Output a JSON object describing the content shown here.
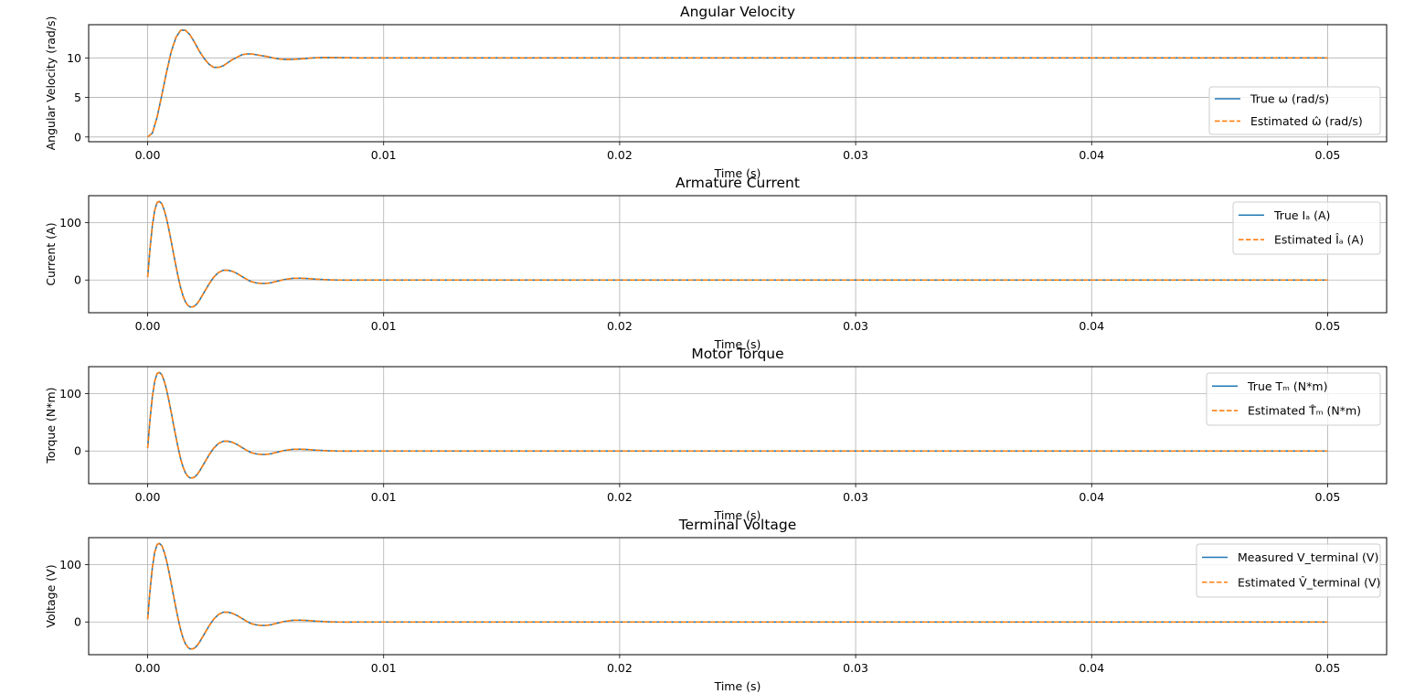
{
  "colors": {
    "true_series": "#1f77b4",
    "estimated_series": "#ff7f0e",
    "grid": "#b0b0b0"
  },
  "chart_data": [
    {
      "type": "line",
      "title": "Angular Velocity",
      "xlabel": "Time (s)",
      "ylabel": "Angular Velocity (rad/s)",
      "xlim": [
        -0.0025,
        0.0525
      ],
      "ylim": [
        -0.6,
        14.2
      ],
      "xticks": [
        0.0,
        0.01,
        0.02,
        0.03,
        0.04,
        0.05
      ],
      "xtick_labels": [
        "0.00",
        "0.01",
        "0.02",
        "0.03",
        "0.04",
        "0.05"
      ],
      "yticks": [
        0,
        5,
        10
      ],
      "ytick_labels": [
        "0",
        "5",
        "10"
      ],
      "grid": true,
      "legend_position": "lower-right",
      "x": [
        0.0,
        0.0002,
        0.0004,
        0.0006,
        0.0008,
        0.001,
        0.0012,
        0.0014,
        0.0016,
        0.0018,
        0.002,
        0.0022,
        0.0024,
        0.0026,
        0.0028,
        0.003,
        0.0032,
        0.0034,
        0.0036,
        0.0038,
        0.004,
        0.0042,
        0.0044,
        0.0046,
        0.0048,
        0.005,
        0.0053,
        0.0056,
        0.0059,
        0.0062,
        0.0066,
        0.007,
        0.0075,
        0.008,
        0.009,
        0.01,
        0.02,
        0.03,
        0.04,
        0.05
      ],
      "series": [
        {
          "name": "True ω (rad/s)",
          "style": "solid",
          "y": [
            0.0,
            0.5,
            2.5,
            5.3,
            8.2,
            10.8,
            12.6,
            13.5,
            13.5,
            12.9,
            11.9,
            10.8,
            9.9,
            9.2,
            8.8,
            8.8,
            9.0,
            9.4,
            9.8,
            10.1,
            10.4,
            10.5,
            10.5,
            10.4,
            10.3,
            10.2,
            10.0,
            9.85,
            9.8,
            9.82,
            9.9,
            10.0,
            10.05,
            10.03,
            10.0,
            10.0,
            10.0,
            10.0,
            10.0,
            10.0
          ]
        },
        {
          "name": "Estimated ω̂ (rad/s)",
          "style": "dashed",
          "y": [
            0.0,
            0.5,
            2.5,
            5.3,
            8.2,
            10.8,
            12.6,
            13.5,
            13.5,
            12.9,
            11.9,
            10.8,
            9.9,
            9.2,
            8.8,
            8.8,
            9.0,
            9.4,
            9.8,
            10.1,
            10.4,
            10.5,
            10.5,
            10.4,
            10.3,
            10.2,
            10.0,
            9.85,
            9.8,
            9.82,
            9.9,
            10.0,
            10.05,
            10.03,
            10.0,
            10.0,
            10.0,
            10.0,
            10.0,
            10.0
          ]
        }
      ]
    },
    {
      "type": "line",
      "title": "Armature Current",
      "xlabel": "Time (s)",
      "ylabel": "Current (A)",
      "xlim": [
        -0.0025,
        0.0525
      ],
      "ylim": [
        -57,
        147
      ],
      "xticks": [
        0.0,
        0.01,
        0.02,
        0.03,
        0.04,
        0.05
      ],
      "xtick_labels": [
        "0.00",
        "0.01",
        "0.02",
        "0.03",
        "0.04",
        "0.05"
      ],
      "yticks": [
        0,
        100
      ],
      "ytick_labels": [
        "0",
        "100"
      ],
      "grid": true,
      "legend_position": "upper-right",
      "x": [
        0.0,
        0.0001,
        0.0002,
        0.0003,
        0.0004,
        0.0005,
        0.0006,
        0.0007,
        0.0008,
        0.0009,
        0.001,
        0.0011,
        0.0012,
        0.0013,
        0.0014,
        0.0015,
        0.0016,
        0.0017,
        0.0018,
        0.0019,
        0.002,
        0.0021,
        0.0022,
        0.0023,
        0.0024,
        0.0026,
        0.0028,
        0.003,
        0.0032,
        0.0034,
        0.0036,
        0.0038,
        0.004,
        0.0042,
        0.0044,
        0.0046,
        0.0048,
        0.005,
        0.0052,
        0.0054,
        0.0056,
        0.0058,
        0.006,
        0.0062,
        0.0065,
        0.0068,
        0.0071,
        0.0074,
        0.0077,
        0.008,
        0.0085,
        0.009,
        0.01,
        0.02,
        0.03,
        0.04,
        0.05
      ],
      "series": [
        {
          "name": "True Iₐ (A)",
          "style": "solid",
          "y": [
            5,
            55,
            95,
            122,
            135,
            137,
            133,
            122,
            107,
            88,
            67,
            45,
            24,
            4,
            -14,
            -28,
            -38,
            -44,
            -47,
            -47,
            -45,
            -41,
            -35,
            -28,
            -21,
            -7,
            5,
            13,
            17,
            17,
            15,
            11,
            6,
            1,
            -3,
            -5,
            -6,
            -6,
            -5,
            -3,
            -1,
            1,
            2,
            3,
            3,
            2.5,
            1.5,
            0.8,
            0.2,
            0,
            -0.2,
            0,
            0,
            0,
            0,
            0,
            0
          ]
        },
        {
          "name": "Estimated Îₐ (A)",
          "style": "dashed",
          "y": [
            5,
            55,
            95,
            122,
            135,
            137,
            133,
            122,
            107,
            88,
            67,
            45,
            24,
            4,
            -14,
            -28,
            -38,
            -44,
            -47,
            -47,
            -45,
            -41,
            -35,
            -28,
            -21,
            -7,
            5,
            13,
            17,
            17,
            15,
            11,
            6,
            1,
            -3,
            -5,
            -6,
            -6,
            -5,
            -3,
            -1,
            1,
            2,
            3,
            3,
            2.5,
            1.5,
            0.8,
            0.2,
            0,
            -0.2,
            0,
            0,
            0,
            0,
            0,
            0
          ]
        }
      ]
    },
    {
      "type": "line",
      "title": "Motor Torque",
      "xlabel": "Time (s)",
      "ylabel": "Torque (N*m)",
      "xlim": [
        -0.0025,
        0.0525
      ],
      "ylim": [
        -57,
        147
      ],
      "xticks": [
        0.0,
        0.01,
        0.02,
        0.03,
        0.04,
        0.05
      ],
      "xtick_labels": [
        "0.00",
        "0.01",
        "0.02",
        "0.03",
        "0.04",
        "0.05"
      ],
      "yticks": [
        0,
        100
      ],
      "ytick_labels": [
        "0",
        "100"
      ],
      "grid": true,
      "legend_position": "upper-right",
      "x": [
        0.0,
        0.0001,
        0.0002,
        0.0003,
        0.0004,
        0.0005,
        0.0006,
        0.0007,
        0.0008,
        0.0009,
        0.001,
        0.0011,
        0.0012,
        0.0013,
        0.0014,
        0.0015,
        0.0016,
        0.0017,
        0.0018,
        0.0019,
        0.002,
        0.0021,
        0.0022,
        0.0023,
        0.0024,
        0.0026,
        0.0028,
        0.003,
        0.0032,
        0.0034,
        0.0036,
        0.0038,
        0.004,
        0.0042,
        0.0044,
        0.0046,
        0.0048,
        0.005,
        0.0052,
        0.0054,
        0.0056,
        0.0058,
        0.006,
        0.0062,
        0.0065,
        0.0068,
        0.0071,
        0.0074,
        0.0077,
        0.008,
        0.0085,
        0.009,
        0.01,
        0.02,
        0.03,
        0.04,
        0.05
      ],
      "series": [
        {
          "name": "True Tₘ (N*m)",
          "style": "solid",
          "y": [
            5,
            55,
            95,
            122,
            135,
            137,
            133,
            122,
            107,
            88,
            67,
            45,
            24,
            4,
            -14,
            -28,
            -38,
            -44,
            -47,
            -47,
            -45,
            -41,
            -35,
            -28,
            -21,
            -7,
            5,
            13,
            17,
            17,
            15,
            11,
            6,
            1,
            -3,
            -5,
            -6,
            -6,
            -5,
            -3,
            -1,
            1,
            2,
            3,
            3,
            2.5,
            1.5,
            0.8,
            0.2,
            0,
            -0.2,
            0,
            0,
            0,
            0,
            0,
            0
          ]
        },
        {
          "name": "Estimated T̂ₘ (N*m)",
          "style": "dashed",
          "y": [
            5,
            55,
            95,
            122,
            135,
            137,
            133,
            122,
            107,
            88,
            67,
            45,
            24,
            4,
            -14,
            -28,
            -38,
            -44,
            -47,
            -47,
            -45,
            -41,
            -35,
            -28,
            -21,
            -7,
            5,
            13,
            17,
            17,
            15,
            11,
            6,
            1,
            -3,
            -5,
            -6,
            -6,
            -5,
            -3,
            -1,
            1,
            2,
            3,
            3,
            2.5,
            1.5,
            0.8,
            0.2,
            0,
            -0.2,
            0,
            0,
            0,
            0,
            0,
            0
          ]
        }
      ]
    },
    {
      "type": "line",
      "title": "Terminal Voltage",
      "xlabel": "Time (s)",
      "ylabel": "Voltage (V)",
      "xlim": [
        -0.0025,
        0.0525
      ],
      "ylim": [
        -57,
        147
      ],
      "xticks": [
        0.0,
        0.01,
        0.02,
        0.03,
        0.04,
        0.05
      ],
      "xtick_labels": [
        "0.00",
        "0.01",
        "0.02",
        "0.03",
        "0.04",
        "0.05"
      ],
      "yticks": [
        0,
        100
      ],
      "ytick_labels": [
        "0",
        "100"
      ],
      "grid": true,
      "legend_position": "upper-right",
      "x": [
        0.0,
        0.0001,
        0.0002,
        0.0003,
        0.0004,
        0.0005,
        0.0006,
        0.0007,
        0.0008,
        0.0009,
        0.001,
        0.0011,
        0.0012,
        0.0013,
        0.0014,
        0.0015,
        0.0016,
        0.0017,
        0.0018,
        0.0019,
        0.002,
        0.0021,
        0.0022,
        0.0023,
        0.0024,
        0.0026,
        0.0028,
        0.003,
        0.0032,
        0.0034,
        0.0036,
        0.0038,
        0.004,
        0.0042,
        0.0044,
        0.0046,
        0.0048,
        0.005,
        0.0052,
        0.0054,
        0.0056,
        0.0058,
        0.006,
        0.0062,
        0.0065,
        0.0068,
        0.0071,
        0.0074,
        0.0077,
        0.008,
        0.0085,
        0.009,
        0.01,
        0.02,
        0.03,
        0.04,
        0.05
      ],
      "series": [
        {
          "name": "Measured V_terminal (V)",
          "style": "solid",
          "y": [
            5,
            55,
            95,
            122,
            135,
            137,
            133,
            122,
            107,
            88,
            67,
            45,
            24,
            4,
            -14,
            -28,
            -38,
            -44,
            -47,
            -47,
            -45,
            -41,
            -35,
            -28,
            -21,
            -7,
            5,
            13,
            17,
            17,
            15,
            11,
            6,
            1,
            -3,
            -5,
            -6,
            -6,
            -5,
            -3,
            -1,
            1,
            2,
            3,
            3,
            2.5,
            1.5,
            0.8,
            0.2,
            0,
            -0.2,
            0,
            0,
            0,
            0,
            0,
            0
          ]
        },
        {
          "name": "Estimated V̂_terminal (V)",
          "style": "dashed",
          "y": [
            5,
            55,
            95,
            122,
            135,
            137,
            133,
            122,
            107,
            88,
            67,
            45,
            24,
            4,
            -14,
            -28,
            -38,
            -44,
            -47,
            -47,
            -45,
            -41,
            -35,
            -28,
            -21,
            -7,
            5,
            13,
            17,
            17,
            15,
            11,
            6,
            1,
            -3,
            -5,
            -6,
            -6,
            -5,
            -3,
            -1,
            1,
            2,
            3,
            3,
            2.5,
            1.5,
            0.8,
            0.2,
            0,
            -0.2,
            0,
            0,
            0,
            0,
            0,
            0
          ]
        }
      ]
    }
  ]
}
